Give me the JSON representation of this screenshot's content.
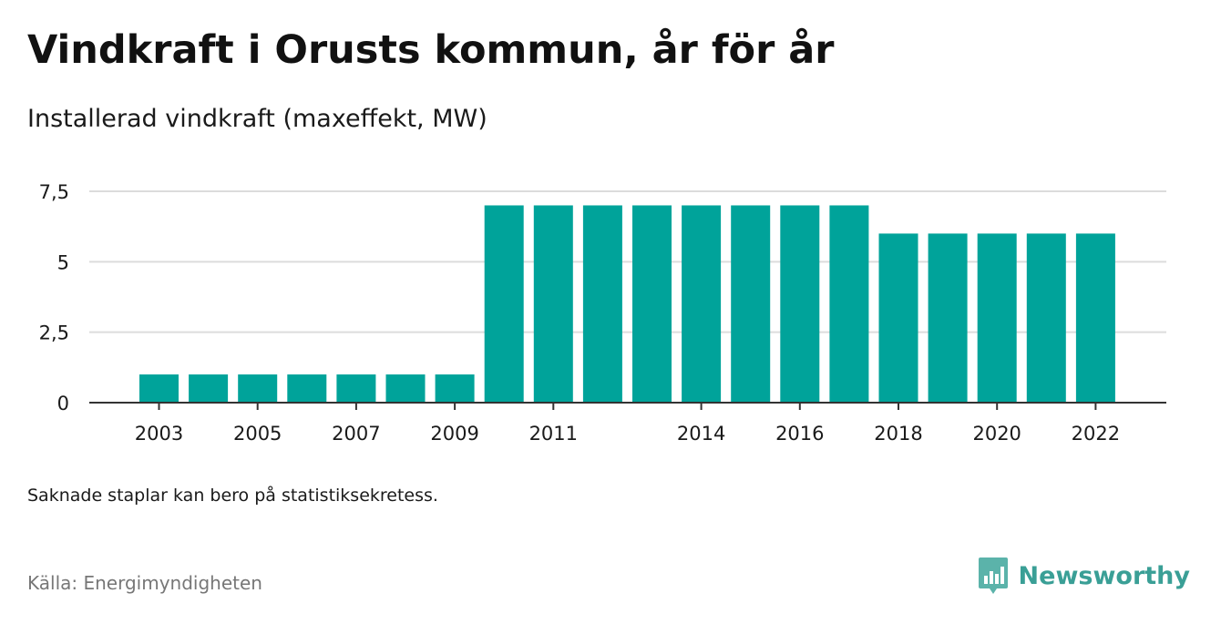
{
  "header": {
    "title": "Vindkraft i Orusts kommun, år för år",
    "subtitle": "Installerad vindkraft (maxeffekt, MW)"
  },
  "footer": {
    "note": "Saknade staplar kan bero på statistiksekretess.",
    "source": "Källa: Energimyndigheten",
    "brand": "Newsworthy"
  },
  "colors": {
    "bar": "#00a39a",
    "grid": "#dcdcdc",
    "axis": "#333333",
    "brand": "#3a9f96"
  },
  "chart_data": {
    "type": "bar",
    "title": "Vindkraft i Orusts kommun, år för år",
    "ylabel": "Installerad vindkraft (maxeffekt, MW)",
    "xlabel": "",
    "categories": [
      "2003",
      "2004",
      "2005",
      "2006",
      "2007",
      "2008",
      "2009",
      "2010",
      "2011",
      "2012",
      "2013",
      "2014",
      "2015",
      "2016",
      "2017",
      "2018",
      "2019",
      "2020",
      "2021",
      "2022"
    ],
    "values": [
      1,
      1,
      1,
      1,
      1,
      1,
      1,
      7,
      7,
      7,
      7,
      7,
      7,
      7,
      7,
      6,
      6,
      6,
      6,
      6
    ],
    "ylim": [
      0,
      7.5
    ],
    "yticks": [
      {
        "value": 0,
        "label": "0"
      },
      {
        "value": 2.5,
        "label": "2,5"
      },
      {
        "value": 5,
        "label": "5"
      },
      {
        "value": 7.5,
        "label": "7,5"
      }
    ],
    "xticks": [
      {
        "at": 0.5,
        "label": "2003"
      },
      {
        "at": 2.5,
        "label": "2005"
      },
      {
        "at": 4.5,
        "label": "2007"
      },
      {
        "at": 6.5,
        "label": "2009"
      },
      {
        "at": 8.5,
        "label": "2011"
      },
      {
        "at": 11.5,
        "label": "2014"
      },
      {
        "at": 13.5,
        "label": "2016"
      },
      {
        "at": 15.5,
        "label": "2018"
      },
      {
        "at": 17.5,
        "label": "2020"
      },
      {
        "at": 19.5,
        "label": "2022"
      }
    ],
    "grid": true,
    "legend": "none"
  }
}
